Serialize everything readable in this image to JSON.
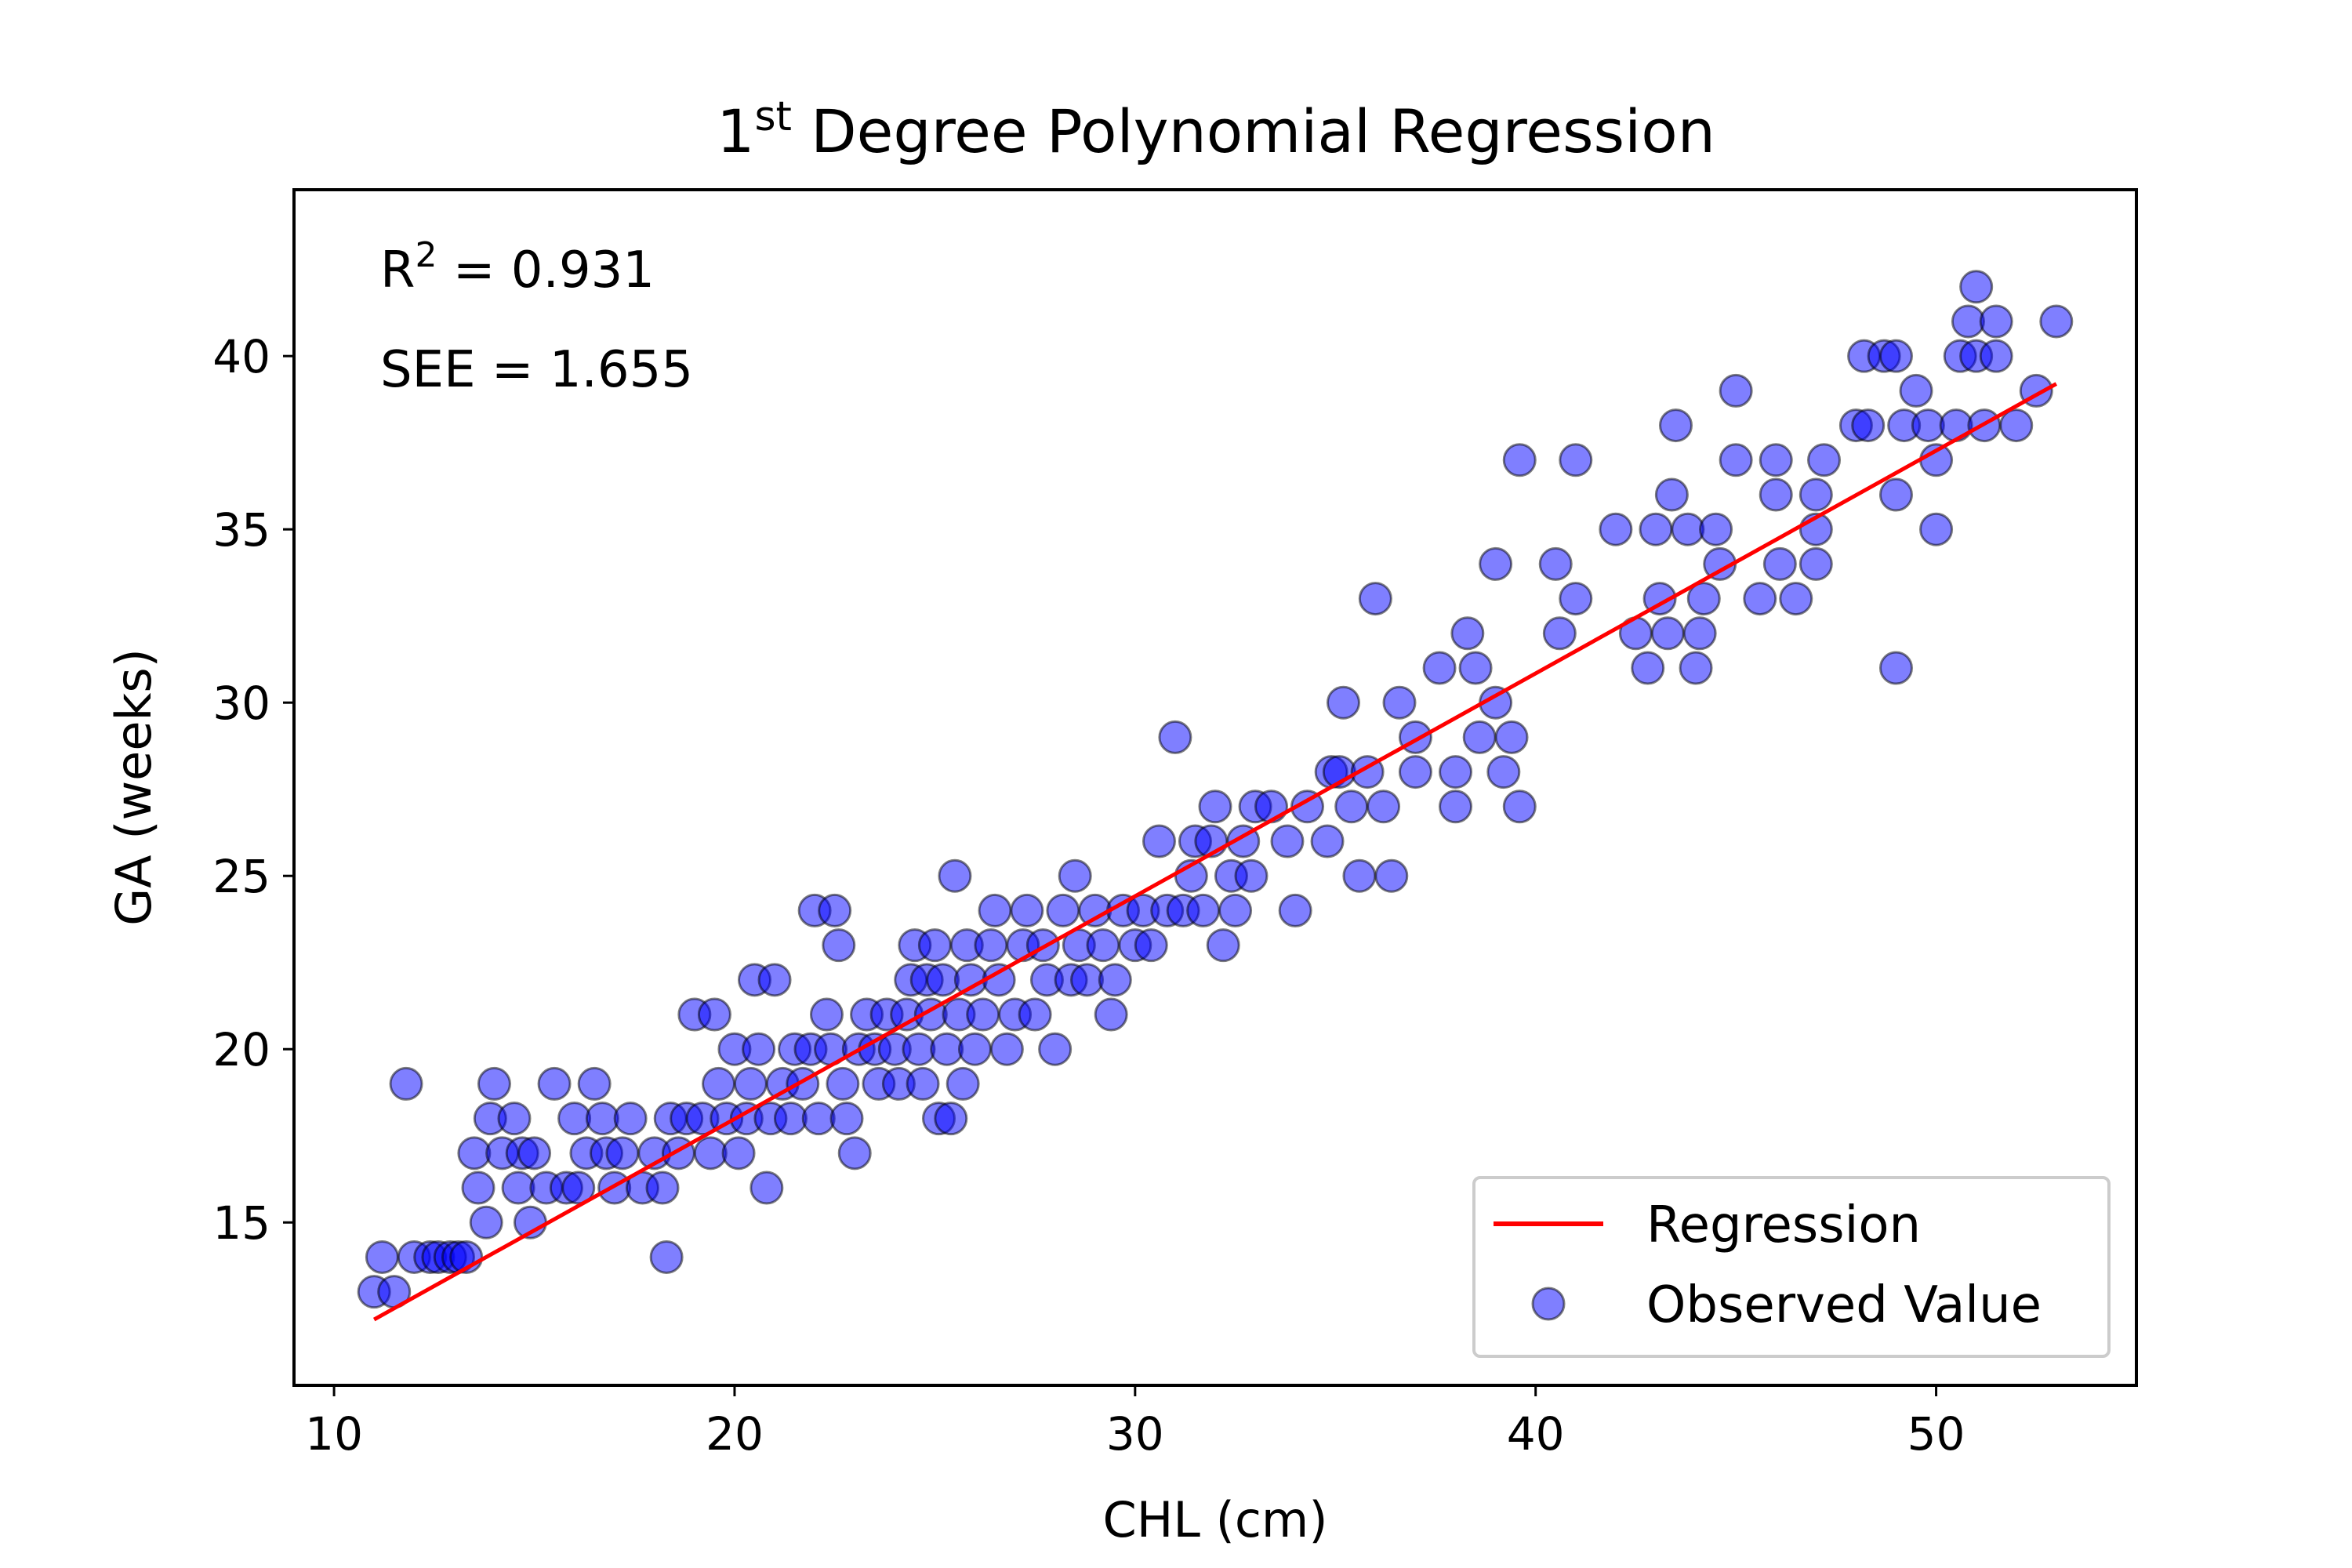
{
  "chart_data": {
    "type": "scatter",
    "title": {
      "prefix": "1",
      "superscript": "st",
      "rest": " Degree Polynomial Regression"
    },
    "xlabel": "CHL (cm)",
    "ylabel": "GA (weeks)",
    "xlim": [
      9,
      55
    ],
    "ylim": [
      10.3,
      44.8
    ],
    "xticks": [
      10,
      20,
      30,
      40,
      50
    ],
    "yticks": [
      15,
      20,
      25,
      30,
      35,
      40
    ],
    "grid": false,
    "annotations": {
      "r2_prefix": "R",
      "r2_sup": "2",
      "r2_rest": " = 0.931",
      "see": "SEE = 1.655"
    },
    "legend": {
      "placement": "lower-right",
      "entries": [
        "Regression",
        "Observed Value"
      ]
    },
    "series": [
      {
        "name": "Regression",
        "kind": "line",
        "color": "#ff0000",
        "x": [
          11,
          53
        ],
        "y": [
          12.2,
          39.2
        ]
      },
      {
        "name": "Observed Value",
        "kind": "scatter",
        "color": "#0000ff",
        "points": [
          [
            11,
            13
          ],
          [
            11.2,
            14
          ],
          [
            11.5,
            13
          ],
          [
            11.8,
            19
          ],
          [
            12,
            14
          ],
          [
            12.4,
            14
          ],
          [
            12.6,
            14
          ],
          [
            12.9,
            14
          ],
          [
            13.1,
            14
          ],
          [
            13.3,
            14
          ],
          [
            13.5,
            17
          ],
          [
            13.6,
            16
          ],
          [
            13.8,
            15
          ],
          [
            13.9,
            18
          ],
          [
            14,
            19
          ],
          [
            14.2,
            17
          ],
          [
            14.5,
            18
          ],
          [
            14.6,
            16
          ],
          [
            14.7,
            17
          ],
          [
            14.9,
            15
          ],
          [
            15,
            17
          ],
          [
            15.3,
            16
          ],
          [
            15.5,
            19
          ],
          [
            15.8,
            16
          ],
          [
            16,
            18
          ],
          [
            16.1,
            16
          ],
          [
            16.3,
            17
          ],
          [
            16.5,
            19
          ],
          [
            16.7,
            18
          ],
          [
            16.8,
            17
          ],
          [
            17,
            16
          ],
          [
            17.2,
            17
          ],
          [
            17.4,
            18
          ],
          [
            17.7,
            16
          ],
          [
            18,
            17
          ],
          [
            18.2,
            16
          ],
          [
            18.4,
            18
          ],
          [
            18.3,
            14
          ],
          [
            18.6,
            17
          ],
          [
            18.8,
            18
          ],
          [
            19,
            21
          ],
          [
            19.2,
            18
          ],
          [
            19.4,
            17
          ],
          [
            19.5,
            21
          ],
          [
            19.6,
            19
          ],
          [
            19.8,
            18
          ],
          [
            20,
            20
          ],
          [
            20.1,
            17
          ],
          [
            20.3,
            18
          ],
          [
            20.4,
            19
          ],
          [
            20.5,
            22
          ],
          [
            20.6,
            20
          ],
          [
            20.8,
            16
          ],
          [
            20.9,
            18
          ],
          [
            21,
            22
          ],
          [
            21.2,
            19
          ],
          [
            21.4,
            18
          ],
          [
            21.5,
            20
          ],
          [
            21.7,
            19
          ],
          [
            21.9,
            20
          ],
          [
            22,
            24
          ],
          [
            22.1,
            18
          ],
          [
            22.3,
            21
          ],
          [
            22.4,
            20
          ],
          [
            22.5,
            24
          ],
          [
            22.6,
            23
          ],
          [
            22.7,
            19
          ],
          [
            22.8,
            18
          ],
          [
            23,
            17
          ],
          [
            23.1,
            20
          ],
          [
            23.3,
            21
          ],
          [
            23.5,
            20
          ],
          [
            23.6,
            19
          ],
          [
            23.8,
            21
          ],
          [
            24,
            20
          ],
          [
            24.1,
            19
          ],
          [
            24.3,
            21
          ],
          [
            24.4,
            22
          ],
          [
            24.5,
            23
          ],
          [
            24.6,
            20
          ],
          [
            24.7,
            19
          ],
          [
            24.8,
            22
          ],
          [
            24.9,
            21
          ],
          [
            25,
            23
          ],
          [
            25.1,
            18
          ],
          [
            25.2,
            22
          ],
          [
            25.3,
            20
          ],
          [
            25.4,
            18
          ],
          [
            25.5,
            25
          ],
          [
            25.6,
            21
          ],
          [
            25.7,
            19
          ],
          [
            25.8,
            23
          ],
          [
            25.9,
            22
          ],
          [
            26,
            20
          ],
          [
            26.2,
            21
          ],
          [
            26.4,
            23
          ],
          [
            26.5,
            24
          ],
          [
            26.6,
            22
          ],
          [
            26.8,
            20
          ],
          [
            27,
            21
          ],
          [
            27.2,
            23
          ],
          [
            27.3,
            24
          ],
          [
            27.5,
            21
          ],
          [
            27.7,
            23
          ],
          [
            27.8,
            22
          ],
          [
            28,
            20
          ],
          [
            28.2,
            24
          ],
          [
            28.4,
            22
          ],
          [
            28.5,
            25
          ],
          [
            28.6,
            23
          ],
          [
            28.8,
            22
          ],
          [
            29,
            24
          ],
          [
            29.2,
            23
          ],
          [
            29.4,
            21
          ],
          [
            29.5,
            22
          ],
          [
            29.7,
            24
          ],
          [
            30,
            23
          ],
          [
            30.2,
            24
          ],
          [
            30.4,
            23
          ],
          [
            30.6,
            26
          ],
          [
            30.8,
            24
          ],
          [
            31,
            29
          ],
          [
            31.2,
            24
          ],
          [
            31.4,
            25
          ],
          [
            31.5,
            26
          ],
          [
            31.7,
            24
          ],
          [
            31.9,
            26
          ],
          [
            32,
            27
          ],
          [
            32.2,
            23
          ],
          [
            32.4,
            25
          ],
          [
            32.5,
            24
          ],
          [
            32.7,
            26
          ],
          [
            32.9,
            25
          ],
          [
            33,
            27
          ],
          [
            33.4,
            27
          ],
          [
            33.8,
            26
          ],
          [
            34,
            24
          ],
          [
            34.3,
            27
          ],
          [
            34.8,
            26
          ],
          [
            34.9,
            28
          ],
          [
            35.1,
            28
          ],
          [
            35.2,
            30
          ],
          [
            35.4,
            27
          ],
          [
            35.6,
            25
          ],
          [
            35.8,
            28
          ],
          [
            36,
            33
          ],
          [
            36.2,
            27
          ],
          [
            36.4,
            25
          ],
          [
            36.6,
            30
          ],
          [
            37,
            29
          ],
          [
            37,
            28
          ],
          [
            37.6,
            31
          ],
          [
            38,
            28
          ],
          [
            38,
            27
          ],
          [
            38.3,
            32
          ],
          [
            38.5,
            31
          ],
          [
            38.6,
            29
          ],
          [
            39,
            34
          ],
          [
            39,
            30
          ],
          [
            39.2,
            28
          ],
          [
            39.4,
            29
          ],
          [
            39.6,
            27
          ],
          [
            39.6,
            37
          ],
          [
            40.5,
            34
          ],
          [
            40.6,
            32
          ],
          [
            41,
            33
          ],
          [
            41,
            37
          ],
          [
            42,
            35
          ],
          [
            42.5,
            32
          ],
          [
            42.8,
            31
          ],
          [
            43,
            35
          ],
          [
            43.1,
            33
          ],
          [
            43.3,
            32
          ],
          [
            43.4,
            36
          ],
          [
            43.5,
            38
          ],
          [
            43.8,
            35
          ],
          [
            44,
            31
          ],
          [
            44.1,
            32
          ],
          [
            44.2,
            33
          ],
          [
            44.5,
            35
          ],
          [
            44.6,
            34
          ],
          [
            45,
            39
          ],
          [
            45,
            37
          ],
          [
            45.6,
            33
          ],
          [
            46,
            37
          ],
          [
            46,
            36
          ],
          [
            46.1,
            34
          ],
          [
            46.5,
            33
          ],
          [
            47,
            34
          ],
          [
            47,
            35
          ],
          [
            47,
            36
          ],
          [
            47.2,
            37
          ],
          [
            48,
            38
          ],
          [
            48.2,
            40
          ],
          [
            48.3,
            38
          ],
          [
            48.7,
            40
          ],
          [
            49,
            40
          ],
          [
            49,
            31
          ],
          [
            49,
            36
          ],
          [
            49.2,
            38
          ],
          [
            49.5,
            39
          ],
          [
            49.8,
            38
          ],
          [
            50,
            37
          ],
          [
            50,
            35
          ],
          [
            50.5,
            38
          ],
          [
            50.6,
            40
          ],
          [
            50.8,
            41
          ],
          [
            51,
            42
          ],
          [
            51,
            40
          ],
          [
            51.2,
            38
          ],
          [
            51.5,
            41
          ],
          [
            51.5,
            40
          ],
          [
            52,
            38
          ],
          [
            52.5,
            39
          ],
          [
            53,
            41
          ]
        ]
      }
    ]
  }
}
